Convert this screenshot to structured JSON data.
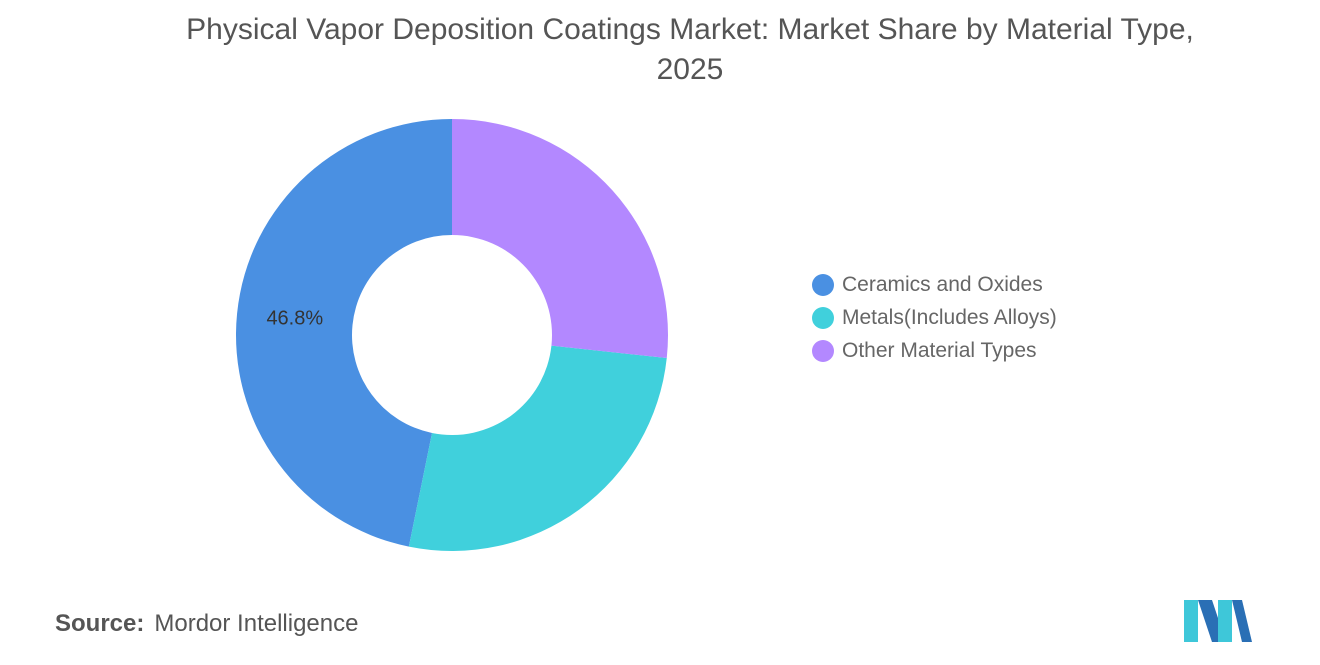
{
  "title_lines": [
    "Physical Vapor Deposition Coatings Market: Market Share by Material Type,",
    "2025"
  ],
  "source": {
    "label": "Source:",
    "value": "Mordor Intelligence"
  },
  "chart_data": {
    "type": "pie",
    "variant": "donut",
    "title": "Physical Vapor Deposition Coatings Market: Market Share by Material Type, 2025",
    "categories": [
      "Ceramics and Oxides",
      "Metals(Includes Alloys)",
      "Other Material Types"
    ],
    "values": [
      46.8,
      26.5,
      26.7
    ],
    "unit": "%",
    "colors": [
      "#4a90e2",
      "#40d0dc",
      "#b388ff"
    ],
    "data_labels": [
      "46.8%",
      "",
      ""
    ],
    "start_angle": "12 o'clock",
    "direction": "counter-clockwise",
    "legend_position": "right"
  },
  "logo": {
    "icon": "mordor-intelligence-logo",
    "colors": [
      "#3ec7d9",
      "#2a6fb5"
    ]
  }
}
